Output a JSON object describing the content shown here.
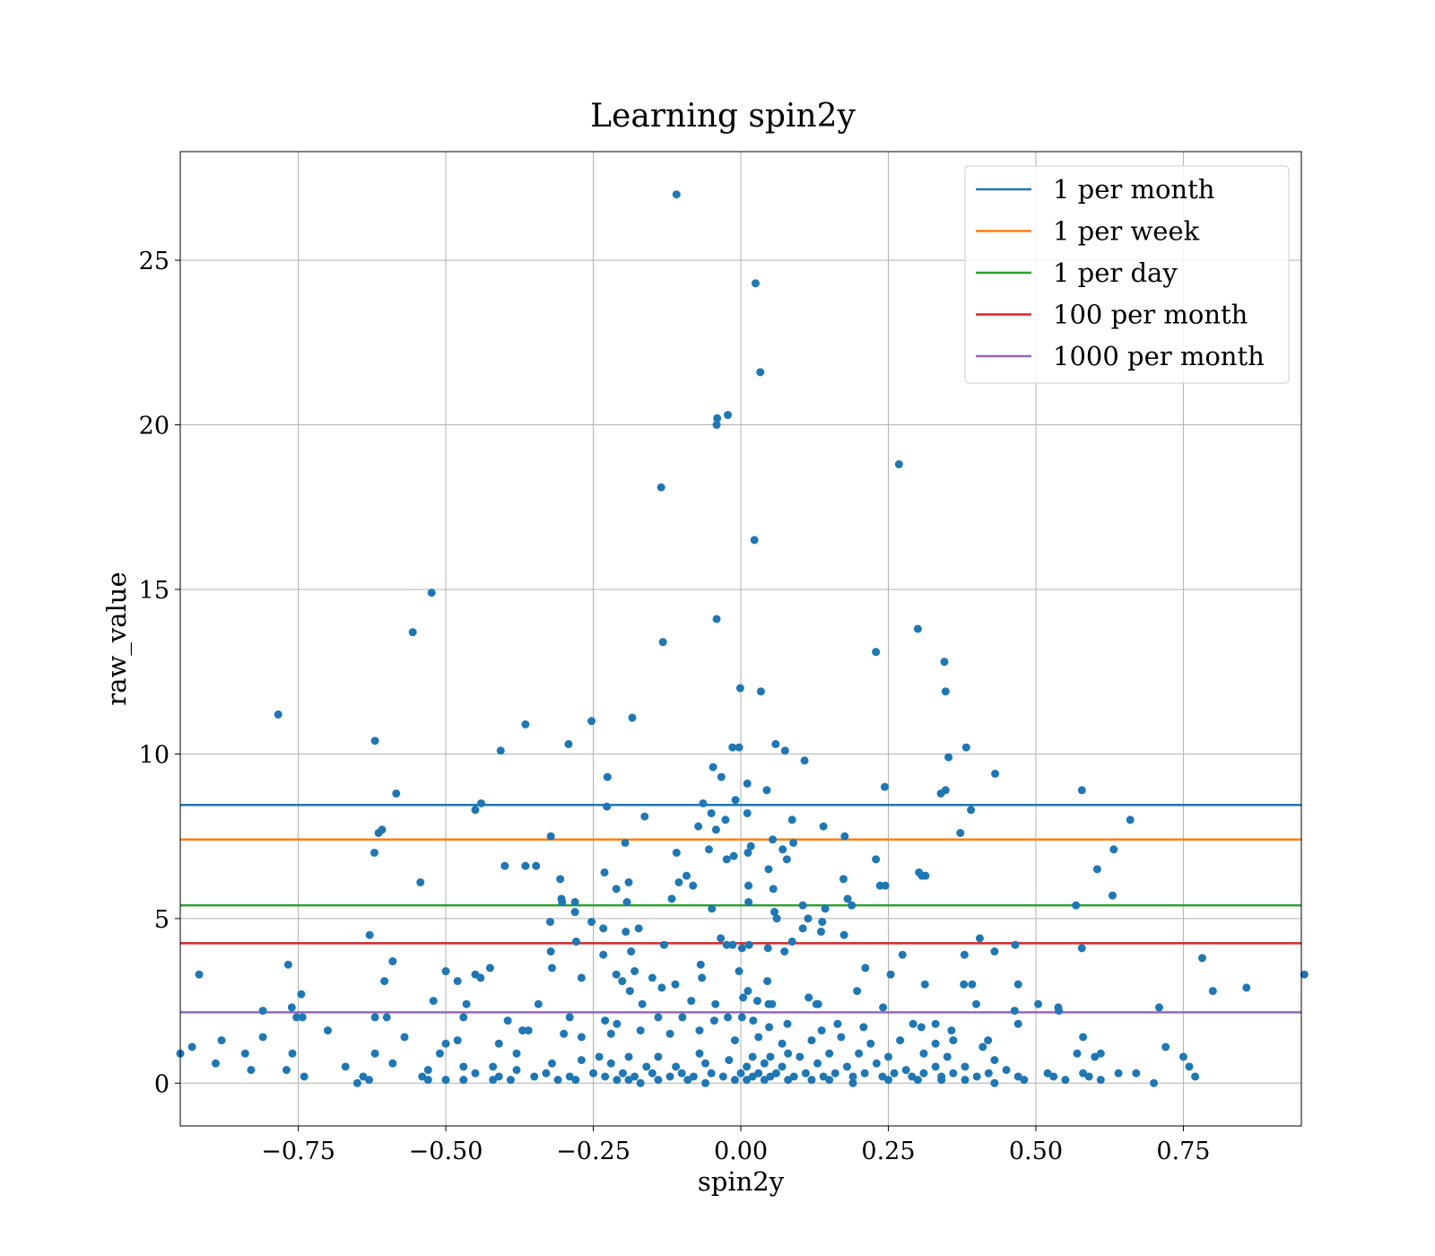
{
  "chart_data": {
    "type": "scatter",
    "title": "Learning spin2y",
    "xlabel": "spin2y",
    "ylabel": "raw_value",
    "xlim": [
      -0.95,
      0.95
    ],
    "ylim": [
      -1.3,
      28.3
    ],
    "grid": true,
    "legend_position": "upper-right",
    "xticks": [
      -0.75,
      -0.5,
      -0.25,
      0.0,
      0.25,
      0.5,
      0.75
    ],
    "xtick_labels": [
      "−0.75",
      "−0.50",
      "−0.25",
      "0.00",
      "0.25",
      "0.50",
      "0.75"
    ],
    "yticks": [
      0,
      5,
      10,
      15,
      20,
      25
    ],
    "ytick_labels": [
      "0",
      "5",
      "10",
      "15",
      "20",
      "25"
    ],
    "point_color": "#1f77b4",
    "points": [
      [
        -0.109,
        27.0
      ],
      [
        0.025,
        24.3
      ],
      [
        0.033,
        21.6
      ],
      [
        -0.041,
        20.0
      ],
      [
        -0.04,
        20.2
      ],
      [
        -0.022,
        20.3
      ],
      [
        -0.135,
        18.1
      ],
      [
        0.268,
        18.8
      ],
      [
        0.023,
        16.5
      ],
      [
        -0.524,
        14.9
      ],
      [
        -0.556,
        13.7
      ],
      [
        -0.041,
        14.1
      ],
      [
        -0.132,
        13.4
      ],
      [
        0.3,
        13.8
      ],
      [
        0.229,
        13.1
      ],
      [
        0.345,
        12.8
      ],
      [
        0.347,
        11.9
      ],
      [
        -0.784,
        11.2
      ],
      [
        -0.001,
        12.0
      ],
      [
        0.034,
        11.9
      ],
      [
        -0.365,
        10.9
      ],
      [
        -0.253,
        11.0
      ],
      [
        -0.184,
        11.1
      ],
      [
        -0.62,
        10.4
      ],
      [
        -0.292,
        10.3
      ],
      [
        -0.407,
        10.1
      ],
      [
        -0.014,
        10.2
      ],
      [
        -0.003,
        10.2
      ],
      [
        0.059,
        10.3
      ],
      [
        0.075,
        10.1
      ],
      [
        0.108,
        9.8
      ],
      [
        0.352,
        9.9
      ],
      [
        0.382,
        10.2
      ],
      [
        0.431,
        9.4
      ],
      [
        -0.226,
        9.3
      ],
      [
        -0.047,
        9.6
      ],
      [
        -0.033,
        9.3
      ],
      [
        0.011,
        9.1
      ],
      [
        0.044,
        8.9
      ],
      [
        0.244,
        9.0
      ],
      [
        0.347,
        8.9
      ],
      [
        0.339,
        8.8
      ],
      [
        -0.584,
        8.8
      ],
      [
        0.39,
        8.3
      ],
      [
        0.578,
        8.9
      ],
      [
        0.66,
        8.0
      ],
      [
        -0.45,
        8.3
      ],
      [
        -0.44,
        8.5
      ],
      [
        -0.227,
        8.4
      ],
      [
        -0.163,
        8.1
      ],
      [
        -0.064,
        8.5
      ],
      [
        -0.05,
        8.2
      ],
      [
        -0.026,
        8.0
      ],
      [
        -0.009,
        8.6
      ],
      [
        0.011,
        8.2
      ],
      [
        0.087,
        8.0
      ],
      [
        0.14,
        7.8
      ],
      [
        0.176,
        7.5
      ],
      [
        0.372,
        7.6
      ],
      [
        -0.608,
        7.7
      ],
      [
        -0.614,
        7.6
      ],
      [
        -0.322,
        7.5
      ],
      [
        -0.196,
        7.3
      ],
      [
        -0.072,
        7.8
      ],
      [
        -0.042,
        7.7
      ],
      [
        0.017,
        7.2
      ],
      [
        0.054,
        7.4
      ],
      [
        0.089,
        7.3
      ],
      [
        -0.109,
        7.0
      ],
      [
        -0.054,
        7.1
      ],
      [
        -0.024,
        6.8
      ],
      [
        -0.012,
        6.9
      ],
      [
        0.012,
        7.0
      ],
      [
        0.071,
        7.1
      ],
      [
        0.078,
        6.8
      ],
      [
        0.229,
        6.8
      ],
      [
        0.302,
        6.4
      ],
      [
        0.307,
        6.3
      ],
      [
        0.604,
        6.5
      ],
      [
        0.632,
        7.1
      ],
      [
        -0.621,
        7.0
      ],
      [
        -0.4,
        6.6
      ],
      [
        -0.365,
        6.6
      ],
      [
        -0.347,
        6.6
      ],
      [
        -0.231,
        6.4
      ],
      [
        -0.19,
        6.1
      ],
      [
        -0.105,
        6.1
      ],
      [
        -0.092,
        6.3
      ],
      [
        -0.081,
        6.0
      ],
      [
        0.047,
        6.5
      ],
      [
        0.013,
        6.0
      ],
      [
        0.174,
        6.2
      ],
      [
        0.236,
        6.0
      ],
      [
        0.245,
        6.0
      ],
      [
        0.313,
        6.3
      ],
      [
        -0.543,
        6.1
      ],
      [
        -0.306,
        6.2
      ],
      [
        -0.304,
        5.6
      ],
      [
        -0.303,
        5.5
      ],
      [
        -0.281,
        5.5
      ],
      [
        -0.211,
        5.9
      ],
      [
        -0.193,
        5.5
      ],
      [
        -0.117,
        5.6
      ],
      [
        -0.049,
        5.3
      ],
      [
        0.013,
        5.5
      ],
      [
        0.055,
        5.9
      ],
      [
        0.105,
        5.4
      ],
      [
        0.143,
        5.3
      ],
      [
        0.181,
        5.6
      ],
      [
        0.188,
        5.4
      ],
      [
        0.568,
        5.4
      ],
      [
        0.63,
        5.7
      ],
      [
        -0.323,
        4.9
      ],
      [
        -0.281,
        5.2
      ],
      [
        -0.253,
        4.9
      ],
      [
        -0.195,
        4.6
      ],
      [
        -0.173,
        4.7
      ],
      [
        -0.233,
        4.7
      ],
      [
        -0.13,
        4.2
      ],
      [
        -0.034,
        4.4
      ],
      [
        -0.024,
        4.2
      ],
      [
        -0.014,
        4.2
      ],
      [
        0.002,
        4.1
      ],
      [
        0.014,
        4.2
      ],
      [
        0.057,
        5.2
      ],
      [
        0.061,
        5.0
      ],
      [
        0.087,
        4.3
      ],
      [
        0.105,
        4.7
      ],
      [
        0.114,
        5.0
      ],
      [
        0.138,
        4.9
      ],
      [
        0.136,
        4.6
      ],
      [
        0.175,
        4.5
      ],
      [
        -0.629,
        4.5
      ],
      [
        -0.322,
        4.0
      ],
      [
        -0.279,
        4.3
      ],
      [
        -0.233,
        3.9
      ],
      [
        -0.186,
        4.0
      ],
      [
        0.046,
        4.1
      ],
      [
        0.074,
        4.0
      ],
      [
        0.274,
        3.9
      ],
      [
        0.379,
        3.9
      ],
      [
        0.405,
        4.4
      ],
      [
        0.43,
        4.0
      ],
      [
        0.465,
        4.2
      ],
      [
        0.578,
        4.1
      ],
      [
        -0.767,
        3.6
      ],
      [
        -0.604,
        3.1
      ],
      [
        -0.59,
        3.7
      ],
      [
        -0.5,
        3.4
      ],
      [
        -0.48,
        3.1
      ],
      [
        -0.45,
        3.3
      ],
      [
        -0.441,
        3.2
      ],
      [
        -0.425,
        3.5
      ],
      [
        -0.32,
        3.5
      ],
      [
        -0.27,
        3.2
      ],
      [
        -0.211,
        3.3
      ],
      [
        -0.201,
        3.1
      ],
      [
        -0.18,
        3.4
      ],
      [
        -0.15,
        3.2
      ],
      [
        -0.111,
        3.0
      ],
      [
        -0.068,
        3.6
      ],
      [
        -0.066,
        3.2
      ],
      [
        -0.003,
        3.4
      ],
      [
        0.045,
        3.1
      ],
      [
        0.211,
        3.5
      ],
      [
        0.312,
        3.0
      ],
      [
        0.378,
        3.0
      ],
      [
        0.392,
        3.0
      ],
      [
        0.47,
        3.0
      ],
      [
        0.782,
        3.8
      ],
      [
        0.955,
        3.3
      ],
      [
        -0.918,
        3.3
      ],
      [
        -0.745,
        2.7
      ],
      [
        -0.521,
        2.5
      ],
      [
        -0.465,
        2.4
      ],
      [
        -0.343,
        2.4
      ],
      [
        -0.188,
        2.8
      ],
      [
        -0.167,
        2.4
      ],
      [
        -0.134,
        2.9
      ],
      [
        -0.084,
        2.5
      ],
      [
        -0.043,
        2.4
      ],
      [
        -0.022,
        2.0
      ],
      [
        0.004,
        2.6
      ],
      [
        0.012,
        2.8
      ],
      [
        0.028,
        2.5
      ],
      [
        0.047,
        2.4
      ],
      [
        0.053,
        2.4
      ],
      [
        0.115,
        2.6
      ],
      [
        0.128,
        2.4
      ],
      [
        0.131,
        2.4
      ],
      [
        0.197,
        2.8
      ],
      [
        0.241,
        2.3
      ],
      [
        0.254,
        3.3
      ],
      [
        0.399,
        2.4
      ],
      [
        0.464,
        2.2
      ],
      [
        0.504,
        2.4
      ],
      [
        0.538,
        2.3
      ],
      [
        0.539,
        2.2
      ],
      [
        0.709,
        2.3
      ],
      [
        0.8,
        2.8
      ],
      [
        0.857,
        2.9
      ],
      [
        -0.81,
        2.2
      ],
      [
        -0.761,
        2.3
      ],
      [
        -0.753,
        2.0
      ],
      [
        -0.743,
        2.0
      ],
      [
        -0.62,
        2.0
      ],
      [
        -0.6,
        2.0
      ],
      [
        -0.47,
        2.0
      ],
      [
        -0.395,
        1.9
      ],
      [
        -0.37,
        1.6
      ],
      [
        -0.29,
        2.0
      ],
      [
        -0.23,
        1.9
      ],
      [
        -0.21,
        1.8
      ],
      [
        -0.14,
        2.0
      ],
      [
        -0.099,
        2.0
      ],
      [
        -0.045,
        1.9
      ],
      [
        0.002,
        2.0
      ],
      [
        0.021,
        1.9
      ],
      [
        0.048,
        1.7
      ],
      [
        0.079,
        1.8
      ],
      [
        0.137,
        1.6
      ],
      [
        0.164,
        1.8
      ],
      [
        0.208,
        1.7
      ],
      [
        0.292,
        1.8
      ],
      [
        0.306,
        1.7
      ],
      [
        0.33,
        1.8
      ],
      [
        0.357,
        1.6
      ],
      [
        0.419,
        1.3
      ],
      [
        0.47,
        1.8
      ],
      [
        -0.93,
        1.1
      ],
      [
        -0.88,
        1.3
      ],
      [
        -0.81,
        1.4
      ],
      [
        -0.7,
        1.6
      ],
      [
        -0.57,
        1.4
      ],
      [
        -0.5,
        1.2
      ],
      [
        -0.48,
        1.3
      ],
      [
        -0.41,
        1.2
      ],
      [
        -0.36,
        1.6
      ],
      [
        -0.3,
        1.5
      ],
      [
        -0.27,
        1.4
      ],
      [
        -0.22,
        1.5
      ],
      [
        -0.17,
        1.6
      ],
      [
        -0.12,
        1.5
      ],
      [
        -0.07,
        1.6
      ],
      [
        -0.01,
        1.3
      ],
      [
        0.03,
        1.4
      ],
      [
        0.07,
        1.2
      ],
      [
        0.12,
        1.3
      ],
      [
        0.17,
        1.4
      ],
      [
        0.22,
        1.2
      ],
      [
        0.27,
        1.3
      ],
      [
        0.33,
        1.2
      ],
      [
        0.36,
        1.3
      ],
      [
        0.41,
        1.1
      ],
      [
        0.58,
        1.4
      ],
      [
        0.72,
        1.1
      ],
      [
        -0.62,
        0.9
      ],
      [
        -0.51,
        0.9
      ],
      [
        -0.38,
        0.9
      ],
      [
        -0.24,
        0.8
      ],
      [
        -0.19,
        0.8
      ],
      [
        -0.14,
        0.8
      ],
      [
        -0.07,
        0.9
      ],
      [
        -0.02,
        0.7
      ],
      [
        0.02,
        0.8
      ],
      [
        0.05,
        0.8
      ],
      [
        0.08,
        0.9
      ],
      [
        0.1,
        0.8
      ],
      [
        0.15,
        0.9
      ],
      [
        0.2,
        0.9
      ],
      [
        0.25,
        0.8
      ],
      [
        0.31,
        0.9
      ],
      [
        0.35,
        0.8
      ],
      [
        0.43,
        0.7
      ],
      [
        0.57,
        0.9
      ],
      [
        0.61,
        0.9
      ],
      [
        0.75,
        0.8
      ],
      [
        -0.95,
        0.9
      ],
      [
        -0.84,
        0.9
      ],
      [
        -0.76,
        0.9
      ],
      [
        -0.59,
        0.6
      ],
      [
        -0.47,
        0.5
      ],
      [
        -0.42,
        0.5
      ],
      [
        -0.32,
        0.6
      ],
      [
        -0.27,
        0.7
      ],
      [
        -0.22,
        0.6
      ],
      [
        -0.16,
        0.5
      ],
      [
        -0.11,
        0.5
      ],
      [
        -0.06,
        0.6
      ],
      [
        0.01,
        0.5
      ],
      [
        0.04,
        0.6
      ],
      [
        0.07,
        0.5
      ],
      [
        0.13,
        0.6
      ],
      [
        0.18,
        0.5
      ],
      [
        0.23,
        0.6
      ],
      [
        0.28,
        0.4
      ],
      [
        0.33,
        0.5
      ],
      [
        0.38,
        0.5
      ],
      [
        0.45,
        0.4
      ],
      [
        0.6,
        0.8
      ],
      [
        -0.89,
        0.6
      ],
      [
        -0.83,
        0.4
      ],
      [
        -0.77,
        0.4
      ],
      [
        -0.67,
        0.5
      ],
      [
        -0.53,
        0.4
      ],
      [
        -0.45,
        0.3
      ],
      [
        -0.38,
        0.4
      ],
      [
        -0.33,
        0.3
      ],
      [
        -0.25,
        0.3
      ],
      [
        -0.2,
        0.3
      ],
      [
        -0.15,
        0.3
      ],
      [
        -0.1,
        0.3
      ],
      [
        -0.05,
        0.3
      ],
      [
        0.0,
        0.3
      ],
      [
        0.03,
        0.3
      ],
      [
        0.06,
        0.3
      ],
      [
        0.11,
        0.3
      ],
      [
        0.16,
        0.3
      ],
      [
        0.21,
        0.3
      ],
      [
        0.26,
        0.3
      ],
      [
        0.31,
        0.3
      ],
      [
        0.36,
        0.3
      ],
      [
        0.42,
        0.3
      ],
      [
        0.52,
        0.3
      ],
      [
        0.58,
        0.3
      ],
      [
        0.64,
        0.3
      ],
      [
        0.67,
        0.3
      ],
      [
        0.76,
        0.5
      ],
      [
        -0.74,
        0.2
      ],
      [
        -0.64,
        0.2
      ],
      [
        -0.54,
        0.2
      ],
      [
        -0.41,
        0.2
      ],
      [
        -0.35,
        0.2
      ],
      [
        -0.29,
        0.2
      ],
      [
        -0.23,
        0.2
      ],
      [
        -0.18,
        0.2
      ],
      [
        -0.12,
        0.2
      ],
      [
        -0.08,
        0.2
      ],
      [
        -0.03,
        0.2
      ],
      [
        0.02,
        0.2
      ],
      [
        0.05,
        0.2
      ],
      [
        0.09,
        0.2
      ],
      [
        0.14,
        0.2
      ],
      [
        0.19,
        0.2
      ],
      [
        0.24,
        0.2
      ],
      [
        0.29,
        0.2
      ],
      [
        0.34,
        0.2
      ],
      [
        0.4,
        0.2
      ],
      [
        0.47,
        0.2
      ],
      [
        0.53,
        0.2
      ],
      [
        0.59,
        0.2
      ],
      [
        0.77,
        0.2
      ],
      [
        -0.65,
        0.0
      ],
      [
        -0.63,
        0.1
      ],
      [
        -0.53,
        0.1
      ],
      [
        -0.5,
        0.1
      ],
      [
        -0.47,
        0.1
      ],
      [
        -0.42,
        0.1
      ],
      [
        -0.39,
        0.1
      ],
      [
        -0.31,
        0.1
      ],
      [
        -0.28,
        0.1
      ],
      [
        -0.21,
        0.1
      ],
      [
        -0.19,
        0.1
      ],
      [
        -0.17,
        0.0
      ],
      [
        -0.14,
        0.1
      ],
      [
        -0.09,
        0.1
      ],
      [
        -0.06,
        0.0
      ],
      [
        -0.01,
        0.1
      ],
      [
        0.01,
        0.1
      ],
      [
        0.04,
        0.1
      ],
      [
        0.08,
        0.1
      ],
      [
        0.12,
        0.1
      ],
      [
        0.15,
        0.1
      ],
      [
        0.19,
        0.0
      ],
      [
        0.25,
        0.1
      ],
      [
        0.3,
        0.1
      ],
      [
        0.34,
        0.1
      ],
      [
        0.38,
        0.1
      ],
      [
        0.43,
        0.0
      ],
      [
        0.48,
        0.1
      ],
      [
        0.55,
        0.1
      ],
      [
        0.61,
        0.1
      ],
      [
        0.7,
        0.0
      ]
    ],
    "hlines": [
      {
        "name": "1 per month",
        "y": 8.45,
        "color": "#1f77b4"
      },
      {
        "name": "1 per week",
        "y": 7.4,
        "color": "#ff7f0e"
      },
      {
        "name": "1 per day",
        "y": 5.4,
        "color": "#2ca02c"
      },
      {
        "name": "100 per month",
        "y": 4.25,
        "color": "#d62728"
      },
      {
        "name": "1000 per month",
        "y": 2.15,
        "color": "#9467bd"
      }
    ]
  }
}
